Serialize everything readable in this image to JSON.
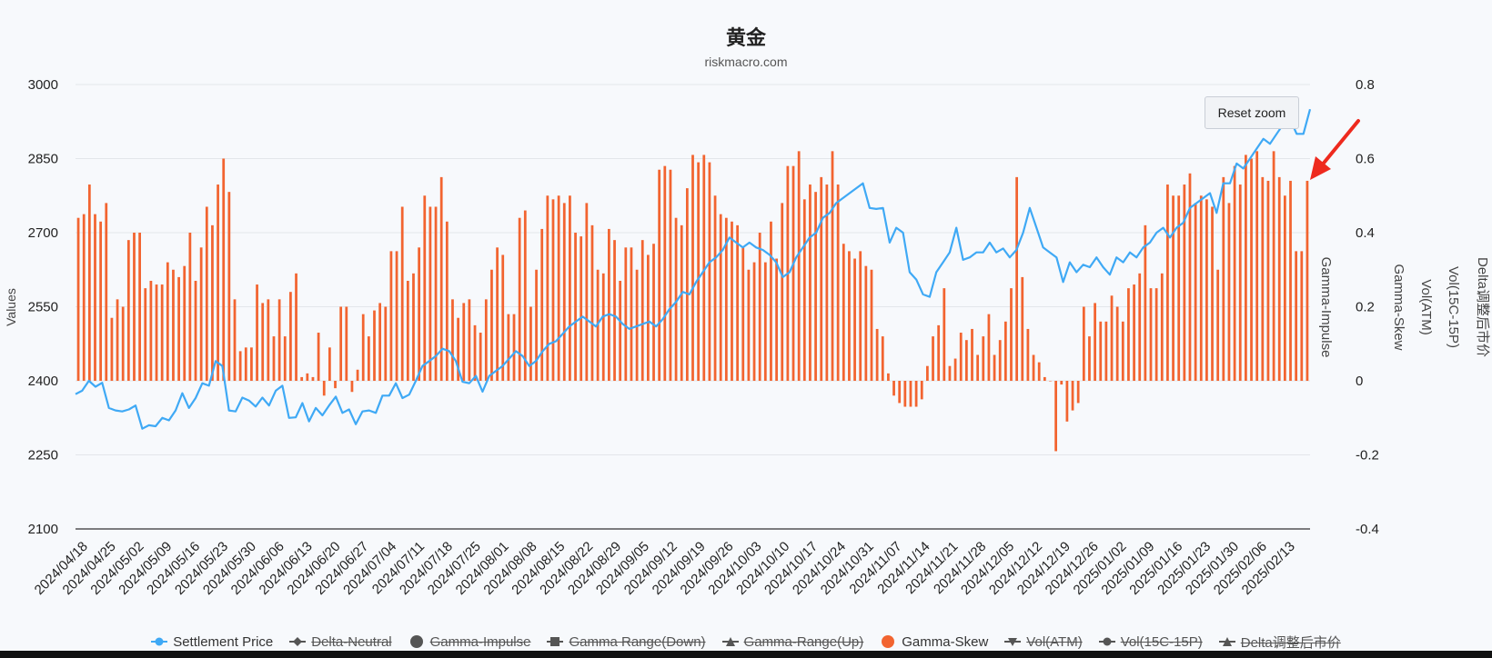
{
  "chart": {
    "title": "黄金",
    "subtitle": "riskmacro.com",
    "reset_zoom_label": "Reset zoom"
  },
  "legend": [
    {
      "label": "Settlement Price",
      "icon": "circle-line-icon",
      "color": "#3fa9f5",
      "visible": true
    },
    {
      "label": "Delta-Neutral",
      "icon": "diamond-line-icon",
      "color": "#555555",
      "visible": false
    },
    {
      "label": "Gamma-Impulse",
      "icon": "circle-icon",
      "color": "#555555",
      "visible": false
    },
    {
      "label": "Gamma Range(Down)",
      "icon": "square-line-icon",
      "color": "#555555",
      "visible": false
    },
    {
      "label": "Gamma-Range(Up)",
      "icon": "triangle-line-icon",
      "color": "#555555",
      "visible": false
    },
    {
      "label": "Gamma-Skew",
      "icon": "circle-icon",
      "color": "#f26430",
      "visible": true
    },
    {
      "label": "Vol(ATM)",
      "icon": "triangle-down-line-icon",
      "color": "#555555",
      "visible": false
    },
    {
      "label": "Vol(15C-15P)",
      "icon": "circle-line-icon",
      "color": "#555555",
      "visible": false
    },
    {
      "label": "Delta调整后市价",
      "icon": "triangle-line-icon",
      "color": "#555555",
      "visible": false
    }
  ],
  "chart_data": {
    "type": "line",
    "left_axis": {
      "label": "Values",
      "min": 2100,
      "max": 3000,
      "ticks": [
        2100,
        2250,
        2400,
        2550,
        2700,
        2850,
        3000
      ]
    },
    "right_axis": {
      "min": -0.4,
      "max": 0.8,
      "ticks": [
        "-0.4",
        "-0.2",
        "0",
        "0.2",
        "0.4",
        "0.6",
        "0.8"
      ],
      "labels": [
        "Gamma-Impulse",
        "Gamma-Skew",
        "Vol(ATM)",
        "Vol(15C-15P)",
        "Delta调整后市价"
      ]
    },
    "x_labels": [
      "2024/04/18",
      "2024/04/25",
      "2024/05/02",
      "2024/05/09",
      "2024/05/16",
      "2024/05/23",
      "2024/05/30",
      "2024/06/06",
      "2024/06/13",
      "2024/06/20",
      "2024/06/27",
      "2024/07/04",
      "2024/07/11",
      "2024/07/18",
      "2024/07/25",
      "2024/08/01",
      "2024/08/08",
      "2024/08/15",
      "2024/08/22",
      "2024/08/29",
      "2024/09/05",
      "2024/09/12",
      "2024/09/19",
      "2024/09/26",
      "2024/10/03",
      "2024/10/10",
      "2024/10/17",
      "2024/10/24",
      "2024/10/31",
      "2024/11/07",
      "2024/11/14",
      "2024/11/21",
      "2024/11/28",
      "2024/12/05",
      "2024/12/12",
      "2024/12/19",
      "2024/12/26",
      "2025/01/02",
      "2025/01/09",
      "2025/01/16",
      "2025/01/23",
      "2025/01/30",
      "2025/02/06",
      "2025/02/13"
    ],
    "series": [
      {
        "name": "Settlement Price",
        "axis": "left",
        "color": "#3fa9f5",
        "values": [
          2373,
          2380,
          2400,
          2388,
          2396,
          2345,
          2340,
          2338,
          2342,
          2350,
          2303,
          2310,
          2308,
          2325,
          2320,
          2340,
          2375,
          2345,
          2365,
          2395,
          2390,
          2440,
          2430,
          2340,
          2338,
          2366,
          2360,
          2348,
          2366,
          2350,
          2380,
          2390,
          2325,
          2326,
          2355,
          2318,
          2345,
          2330,
          2350,
          2368,
          2335,
          2342,
          2312,
          2338,
          2340,
          2335,
          2370,
          2370,
          2395,
          2365,
          2372,
          2400,
          2430,
          2440,
          2450,
          2465,
          2460,
          2440,
          2398,
          2395,
          2410,
          2378,
          2410,
          2420,
          2430,
          2445,
          2460,
          2450,
          2430,
          2440,
          2460,
          2475,
          2480,
          2495,
          2510,
          2520,
          2530,
          2520,
          2510,
          2530,
          2535,
          2530,
          2515,
          2505,
          2510,
          2515,
          2520,
          2510,
          2525,
          2545,
          2560,
          2580,
          2575,
          2600,
          2620,
          2640,
          2650,
          2665,
          2690,
          2680,
          2670,
          2680,
          2670,
          2665,
          2655,
          2640,
          2610,
          2620,
          2650,
          2670,
          2690,
          2700,
          2730,
          2740,
          2760,
          2770,
          2780,
          2790,
          2800,
          2750,
          2748,
          2750,
          2680,
          2710,
          2700,
          2620,
          2605,
          2575,
          2570,
          2620,
          2640,
          2660,
          2710,
          2645,
          2650,
          2660,
          2660,
          2680,
          2660,
          2668,
          2650,
          2665,
          2700,
          2750,
          2710,
          2670,
          2660,
          2650,
          2600,
          2640,
          2620,
          2635,
          2630,
          2650,
          2630,
          2615,
          2650,
          2640,
          2660,
          2650,
          2670,
          2680,
          2700,
          2710,
          2690,
          2710,
          2720,
          2750,
          2760,
          2770,
          2780,
          2740,
          2800,
          2800,
          2840,
          2830,
          2850,
          2870,
          2890,
          2880,
          2900,
          2920,
          2930,
          2900,
          2900,
          2950
        ]
      },
      {
        "name": "Gamma-Skew",
        "axis": "right",
        "color": "#f26430",
        "values": [
          0.44,
          0.45,
          0.53,
          0.45,
          0.43,
          0.48,
          0.17,
          0.22,
          0.2,
          0.38,
          0.4,
          0.4,
          0.25,
          0.27,
          0.26,
          0.26,
          0.32,
          0.3,
          0.28,
          0.31,
          0.4,
          0.27,
          0.36,
          0.47,
          0.42,
          0.53,
          0.6,
          0.51,
          0.22,
          0.08,
          0.09,
          0.09,
          0.26,
          0.21,
          0.22,
          0.12,
          0.22,
          0.12,
          0.24,
          0.29,
          0.01,
          0.02,
          0.01,
          0.13,
          -0.04,
          0.09,
          -0.02,
          0.2,
          0.2,
          -0.03,
          0.03,
          0.18,
          0.12,
          0.19,
          0.21,
          0.2,
          0.35,
          0.35,
          0.47,
          0.27,
          0.29,
          0.36,
          0.5,
          0.47,
          0.47,
          0.55,
          0.43,
          0.22,
          0.17,
          0.21,
          0.22,
          0.15,
          0.13,
          0.22,
          0.3,
          0.36,
          0.34,
          0.18,
          0.18,
          0.44,
          0.46,
          0.2,
          0.3,
          0.41,
          0.5,
          0.49,
          0.5,
          0.48,
          0.5,
          0.4,
          0.39,
          0.48,
          0.42,
          0.3,
          0.29,
          0.41,
          0.38,
          0.27,
          0.36,
          0.36,
          0.3,
          0.38,
          0.34,
          0.37,
          0.57,
          0.58,
          0.57,
          0.44,
          0.42,
          0.52,
          0.61,
          0.59,
          0.61,
          0.59,
          0.5,
          0.45,
          0.44,
          0.43,
          0.42,
          0.36,
          0.3,
          0.32,
          0.4,
          0.32,
          0.43,
          0.33,
          0.48,
          0.58,
          0.58,
          0.62,
          0.49,
          0.53,
          0.51,
          0.55,
          0.53,
          0.62,
          0.53,
          0.37,
          0.35,
          0.33,
          0.35,
          0.31,
          0.3,
          0.14,
          0.12,
          0.02,
          -0.04,
          -0.06,
          -0.07,
          -0.07,
          -0.07,
          -0.05,
          0.04,
          0.12,
          0.15,
          0.25,
          0.04,
          0.06,
          0.13,
          0.11,
          0.14,
          0.07,
          0.12,
          0.18,
          0.07,
          0.11,
          0.16,
          0.25,
          0.55,
          0.28,
          0.14,
          0.07,
          0.05,
          0.01,
          0.0,
          -0.19,
          -0.01,
          -0.11,
          -0.08,
          -0.06,
          0.2,
          0.12,
          0.21,
          0.16,
          0.16,
          0.23,
          0.2,
          0.16,
          0.25,
          0.26,
          0.29,
          0.42,
          0.25,
          0.25,
          0.29,
          0.53,
          0.5,
          0.5,
          0.53,
          0.56,
          0.48,
          0.5,
          0.49,
          0.47,
          0.3,
          0.55,
          0.48,
          0.58,
          0.53,
          0.61,
          0.6,
          0.62,
          0.55,
          0.54,
          0.62,
          0.55,
          0.5,
          0.54,
          0.35,
          0.35,
          0.54
        ]
      }
    ],
    "grid": true,
    "legend_position": "bottom"
  }
}
